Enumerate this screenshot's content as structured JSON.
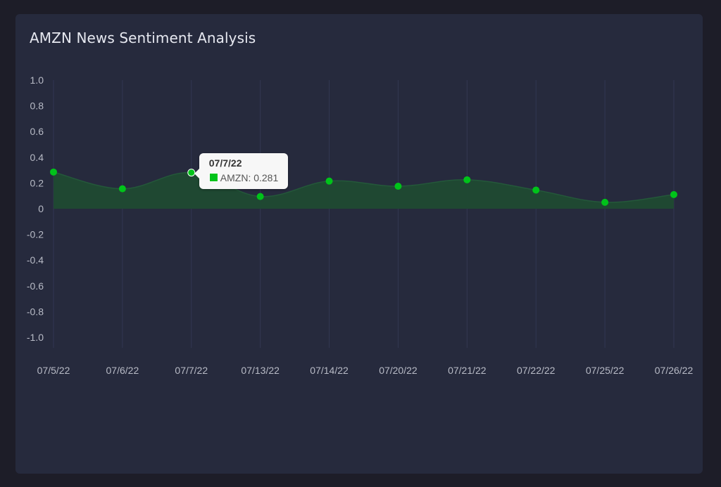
{
  "card": {
    "title": "AMZN News Sentiment Analysis"
  },
  "colors": {
    "background": "#1d1d28",
    "card": "#262a3d",
    "series": "#00c31a",
    "area": "#1f4a31",
    "grid": "#323752"
  },
  "tooltip": {
    "title": "07/7/22",
    "series_name": "AMZN",
    "separator": ": ",
    "value": "0.281"
  },
  "chart_data": {
    "type": "area",
    "categories": [
      "07/5/22",
      "07/6/22",
      "07/7/22",
      "07/13/22",
      "07/14/22",
      "07/20/22",
      "07/21/22",
      "07/22/22",
      "07/25/22",
      "07/26/22"
    ],
    "series": [
      {
        "name": "AMZN",
        "values": [
          0.285,
          0.155,
          0.281,
          0.095,
          0.215,
          0.175,
          0.225,
          0.145,
          0.05,
          0.11
        ]
      }
    ],
    "ylim": [
      -1.0,
      1.0
    ],
    "yticks": [
      "1.0",
      "0.8",
      "0.6",
      "0.4",
      "0.2",
      "0",
      "-0.2",
      "-0.4",
      "-0.6",
      "-0.8",
      "-1.0"
    ],
    "grid": "vertical",
    "legend": "none"
  }
}
